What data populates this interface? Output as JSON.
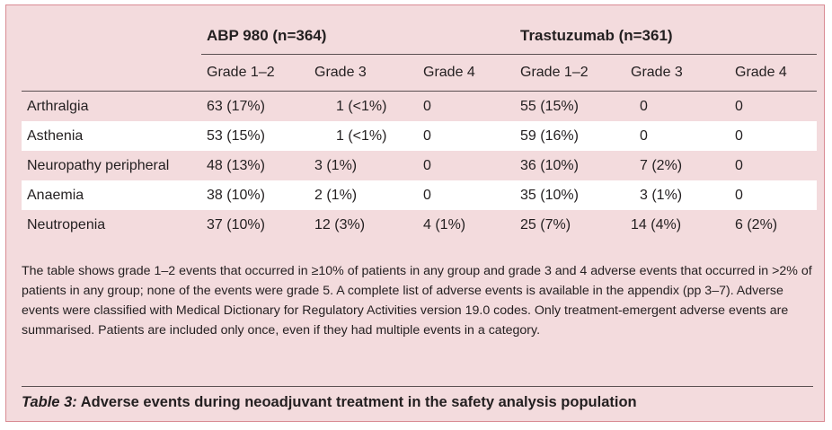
{
  "table": {
    "groups": [
      {
        "label": "ABP 980 (n=364)"
      },
      {
        "label": "Trastuzumab (n=361)"
      }
    ],
    "grade_headers": [
      "Grade 1–2",
      "Grade 3",
      "Grade 4",
      "Grade 1–2",
      "Grade 3",
      "Grade 4"
    ],
    "rows": [
      {
        "event": "Arthralgia",
        "cells": [
          "63 (17%)",
          "1 (<1%)",
          "0",
          "55 (15%)",
          "0",
          "0"
        ]
      },
      {
        "event": "Asthenia",
        "cells": [
          "53 (15%)",
          "1 (<1%)",
          "0",
          "59 (16%)",
          "0",
          "0"
        ]
      },
      {
        "event": "Neuropathy peripheral",
        "cells": [
          "48 (13%)",
          "3 (1%)",
          "0",
          "36 (10%)",
          "7 (2%)",
          "0"
        ]
      },
      {
        "event": "Anaemia",
        "cells": [
          "38 (10%)",
          "2 (1%)",
          "0",
          "35 (10%)",
          "3 (1%)",
          "0"
        ]
      },
      {
        "event": "Neutropenia",
        "cells": [
          "37 (10%)",
          "12 (3%)",
          "4 (1%)",
          "25 (7%)",
          "14 (4%)",
          "6 (2%)"
        ]
      }
    ]
  },
  "footnote": "The table shows grade 1–2 events that occurred in ≥10% of patients in any group and grade 3 and 4 adverse events that occurred in >2% of patients in any group; none of the events were grade 5. A complete list of adverse events is available in the appendix (pp 3–7). Adverse events were classified with Medical Dictionary for Regulatory Activities version 19.0 codes. Only treatment-emergent adverse events are summarised. Patients are included only once, even if they had multiple events in a category.",
  "caption": {
    "label": "Table 3:",
    "text": " Adverse events during neoadjuvant treatment in the safety analysis population"
  },
  "colors": {
    "panel_background": "#f3dbdd",
    "panel_border": "#d98b93",
    "alt_row_background": "#ffffff"
  }
}
